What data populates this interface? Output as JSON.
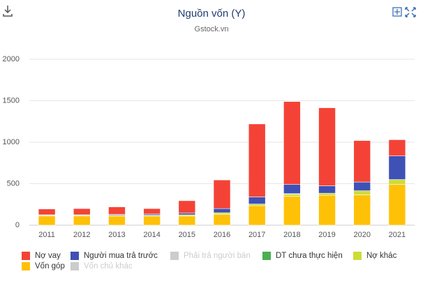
{
  "chart_data": {
    "type": "stacked_bar",
    "title": "Nguồn vốn (Y)",
    "subtitle": "Gstock.vn",
    "categories": [
      "2011",
      "2012",
      "2013",
      "2014",
      "2015",
      "2016",
      "2017",
      "2018",
      "2019",
      "2020",
      "2021"
    ],
    "series": [
      {
        "name": "Nợ vay",
        "color": "#f44336",
        "visible": true,
        "values": [
          70,
          75,
          90,
          65,
          150,
          345,
          880,
          1000,
          940,
          500,
          195
        ]
      },
      {
        "name": "Người mua trả trước",
        "color": "#3f51b5",
        "visible": true,
        "values": [
          5,
          5,
          10,
          15,
          20,
          50,
          85,
          110,
          90,
          105,
          285
        ]
      },
      {
        "name": "Phải trả người bán",
        "color": "#9e9e9e",
        "visible": false,
        "values": [
          null,
          null,
          null,
          null,
          null,
          null,
          null,
          null,
          null,
          null,
          null
        ]
      },
      {
        "name": "DT chưa thực hiện",
        "color": "#4caf50",
        "visible": true,
        "values": [
          0,
          0,
          0,
          0,
          0,
          0,
          0,
          5,
          0,
          0,
          0
        ]
      },
      {
        "name": "Nợ khác",
        "color": "#cddc39",
        "visible": true,
        "values": [
          10,
          10,
          10,
          10,
          15,
          20,
          20,
          25,
          25,
          50,
          60
        ]
      },
      {
        "name": "Vốn góp",
        "color": "#ffc107",
        "visible": true,
        "values": [
          110,
          110,
          110,
          110,
          110,
          130,
          235,
          350,
          360,
          365,
          490
        ]
      },
      {
        "name": "Vốn chủ khác",
        "color": "#9e9e9e",
        "visible": false,
        "values": [
          null,
          null,
          null,
          null,
          null,
          null,
          null,
          null,
          null,
          null,
          null
        ]
      }
    ],
    "ylim": [
      0,
      2000
    ],
    "yticks": [
      0,
      500,
      1000,
      1500,
      2000
    ],
    "grid": true
  }
}
